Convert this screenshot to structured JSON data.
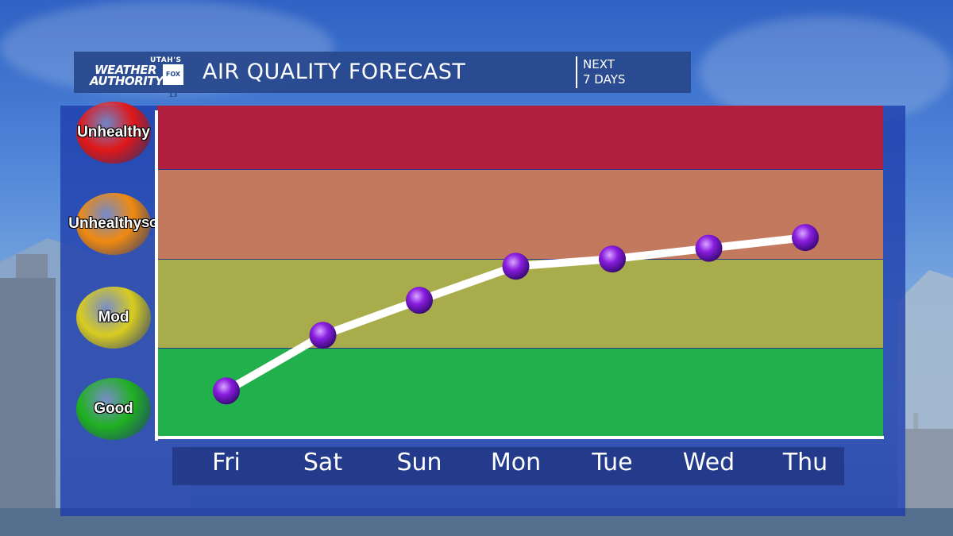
{
  "header": {
    "logo_line1": "UTAH'S",
    "logo_line2": "WEATHER",
    "logo_line3": "AUTHORITY",
    "logo_badge": "FOX 13",
    "title": "AIR QUALITY FORECAST",
    "subtitle_line1": "NEXT",
    "subtitle_line2": "7 DAYS"
  },
  "levels": [
    {
      "label": "Unhealthy",
      "color": "#b0203e",
      "badge_color": "#e01818"
    },
    {
      "label": "Unhealthy SG",
      "color": "#c2795d",
      "badge_color": "#f08a10"
    },
    {
      "label": "Mod",
      "color": "#a9ac4a",
      "badge_color": "#d8cc20"
    },
    {
      "label": "Good",
      "color": "#21b04c",
      "badge_color": "#20b020"
    }
  ],
  "chart_data": {
    "type": "line",
    "title": "AIR QUALITY FORECAST",
    "categories": [
      "Fri",
      "Sat",
      "Sun",
      "Mon",
      "Tue",
      "Wed",
      "Thu"
    ],
    "values": [
      0.52,
      1.14,
      1.53,
      1.91,
      1.99,
      2.11,
      2.23
    ],
    "ylim": [
      0,
      3.7
    ],
    "y_levels": [
      "Good",
      "Mod",
      "Unhealthy SG",
      "Unhealthy"
    ],
    "line_color": "#ffffff",
    "marker_color": "#8a1ee0",
    "grid": false
  }
}
